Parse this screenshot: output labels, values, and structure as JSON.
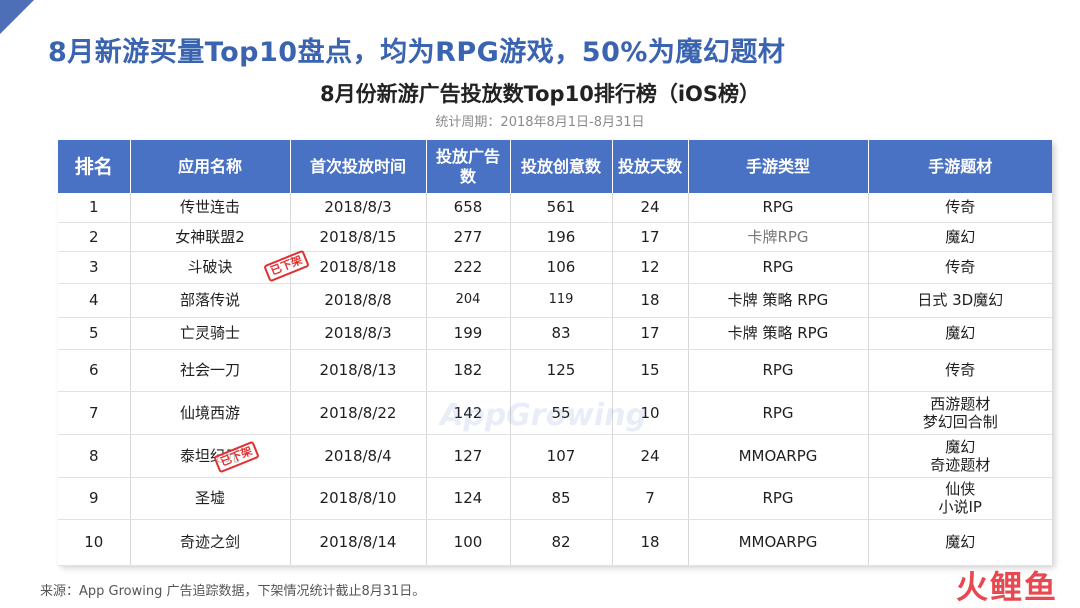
{
  "title": "8月新游买量Top10盘点，均为RPG游戏，50%为魔幻题材",
  "subtitle": "8月份新游广告投放数Top10排行榜（iOS榜）",
  "period": "统计周期：2018年8月1日-8月31日",
  "table": {
    "headers": [
      "排名",
      "应用名称",
      "首次投放时间",
      "投放广告数",
      "投放创意数",
      "投放天数",
      "手游类型",
      "手游题材"
    ],
    "rows": [
      {
        "rank": "1",
        "name": "传世连击",
        "date": "2018/8/3",
        "ads": "658",
        "creatives": "561",
        "days": "24",
        "type": "RPG",
        "theme": "传奇"
      },
      {
        "rank": "2",
        "name": "女神联盟2",
        "date": "2018/8/15",
        "ads": "277",
        "creatives": "196",
        "days": "17",
        "type": "卡牌RPG",
        "theme": "魔幻"
      },
      {
        "rank": "3",
        "name": "斗破诀",
        "date": "2018/8/18",
        "ads": "222",
        "creatives": "106",
        "days": "12",
        "type": "RPG",
        "theme": "传奇"
      },
      {
        "rank": "4",
        "name": "部落传说",
        "date": "2018/8/8",
        "ads": "204",
        "creatives": "119",
        "days": "18",
        "type": "卡牌 策略 RPG",
        "theme": "日式  3D魔幻"
      },
      {
        "rank": "5",
        "name": "亡灵骑士",
        "date": "2018/8/3",
        "ads": "199",
        "creatives": "83",
        "days": "17",
        "type": "卡牌 策略 RPG",
        "theme": "魔幻"
      },
      {
        "rank": "6",
        "name": "社会一刀",
        "date": "2018/8/13",
        "ads": "182",
        "creatives": "125",
        "days": "15",
        "type": "RPG",
        "theme": "传奇"
      },
      {
        "rank": "7",
        "name": "仙境西游",
        "date": "2018/8/22",
        "ads": "142",
        "creatives": "55",
        "days": "10",
        "type": "RPG",
        "theme": "西游题材",
        "theme2": "梦幻回合制"
      },
      {
        "rank": "8",
        "name": "泰坦纪元",
        "date": "2018/8/4",
        "ads": "127",
        "creatives": "107",
        "days": "24",
        "type": "MMOARPG",
        "theme": "魔幻",
        "theme2": "奇迹题材"
      },
      {
        "rank": "9",
        "name": "圣墟",
        "date": "2018/8/10",
        "ads": "124",
        "creatives": "85",
        "days": "7",
        "type": "RPG",
        "theme": "仙侠",
        "theme2": "小说IP"
      },
      {
        "rank": "10",
        "name": "奇迹之剑",
        "date": "2018/8/14",
        "ads": "100",
        "creatives": "82",
        "days": "18",
        "type": "MMOARPG",
        "theme": "魔幻"
      }
    ]
  },
  "stamp_text": "已下架",
  "watermark": "AppGrowing",
  "footer": "来源：App Growing 广告追踪数据，下架情况统计截止8月31日。",
  "brand": "火鲤鱼",
  "colors": {
    "title": "#3a63b0",
    "header_bg": "#4a72c4",
    "stamp": "#e03131",
    "brand": "#e8484f"
  }
}
